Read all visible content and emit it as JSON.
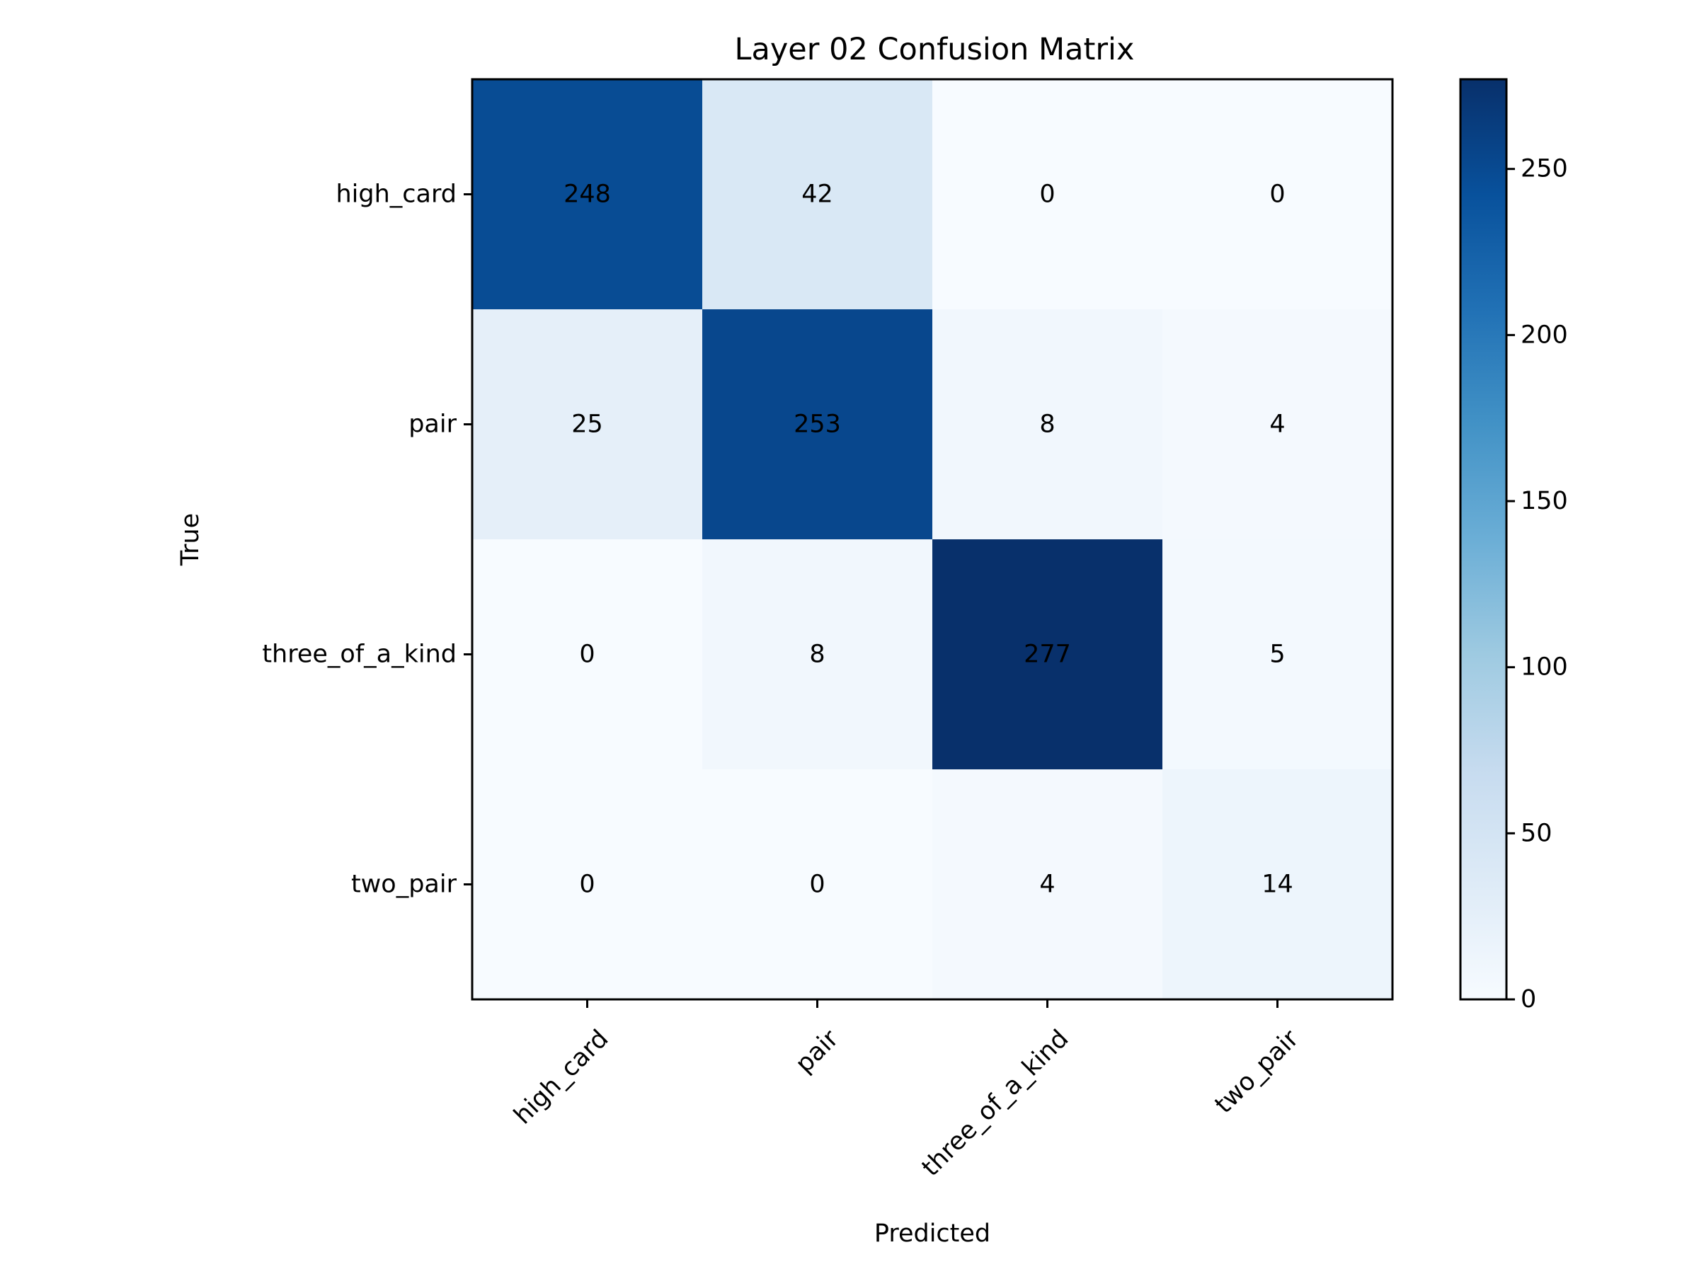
{
  "chart_data": {
    "type": "heatmap",
    "title": "Layer 02 Confusion Matrix",
    "xlabel": "Predicted",
    "ylabel": "True",
    "x_categories": [
      "high_card",
      "pair",
      "three_of_a_kind",
      "two_pair"
    ],
    "y_categories": [
      "high_card",
      "pair",
      "three_of_a_kind",
      "two_pair"
    ],
    "matrix": [
      [
        248,
        42,
        0,
        0
      ],
      [
        25,
        253,
        8,
        4
      ],
      [
        0,
        8,
        277,
        5
      ],
      [
        0,
        0,
        4,
        14
      ]
    ],
    "colormap": "Blues",
    "colorbar": {
      "range": [
        0,
        277
      ],
      "ticks": [
        0,
        50,
        100,
        150,
        200,
        250
      ]
    },
    "x_tick_rotation_deg": 45,
    "grid": false
  }
}
